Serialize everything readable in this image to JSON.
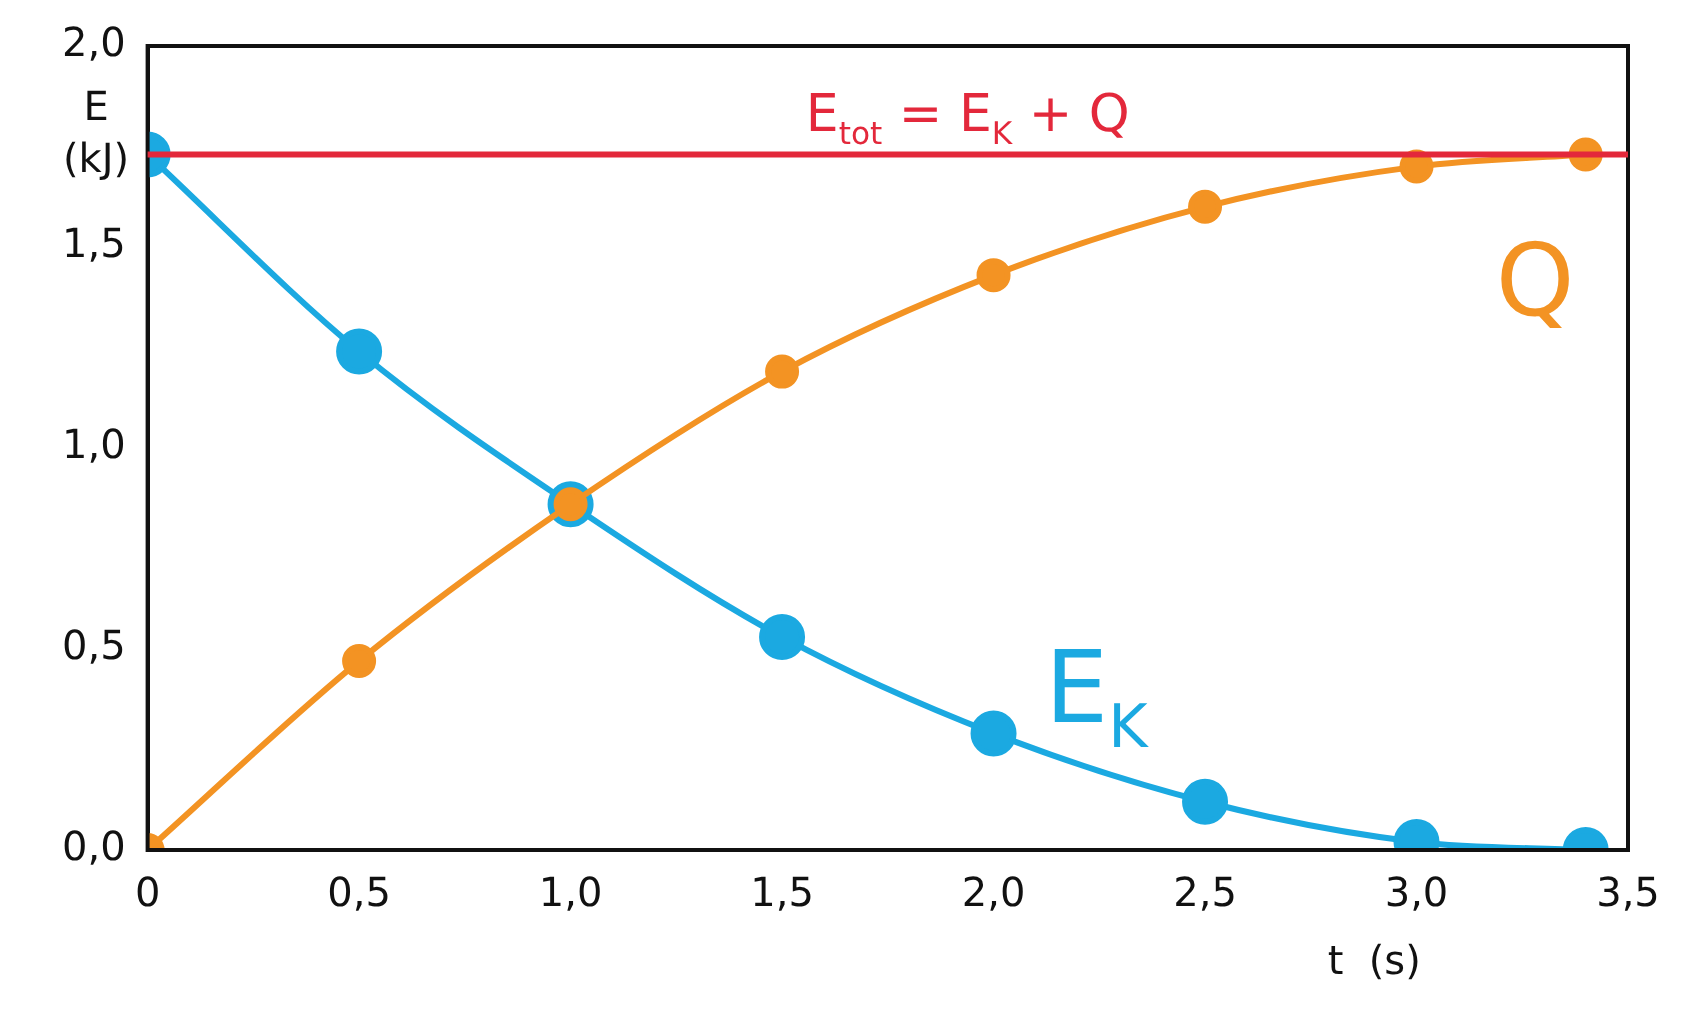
{
  "chart_data": {
    "type": "line",
    "xlabel": "t  (s)",
    "ylabel": "E\n(kJ)",
    "x": [
      0,
      0.5,
      1.0,
      1.5,
      2.0,
      2.5,
      3.0,
      3.4
    ],
    "series": [
      {
        "name": "E$_{K}$",
        "color": "#1ba9e1",
        "values": [
          1.73,
          1.24,
          0.86,
          0.53,
          0.29,
          0.12,
          0.02,
          0
        ]
      },
      {
        "name": "Q",
        "color": "#f39323",
        "values": [
          0,
          0.47,
          0.86,
          1.19,
          1.43,
          1.6,
          1.7,
          1.73
        ]
      }
    ],
    "ref_lines": [
      {
        "axis": "y",
        "value": 1.73,
        "label": "E$_{tot}$ = E$_{K}$ + Q",
        "color": "#e3283b"
      }
    ],
    "xlim": [
      0,
      3.5
    ],
    "xticks": [
      0,
      {
        "value": 0.5,
        "label": "0,5"
      },
      {
        "value": 1.0,
        "label": "1,0"
      },
      {
        "value": 1.5,
        "label": "1,5"
      },
      {
        "value": 2.0,
        "label": "2,0"
      },
      {
        "value": 2.5,
        "label": "2,5"
      },
      {
        "value": 3.0,
        "label": "3,0"
      },
      {
        "value": 3.5,
        "label": "3,5"
      }
    ],
    "ylim": [
      0,
      2.0
    ],
    "yticks": [
      {
        "value": 0,
        "label": "0,0"
      },
      {
        "value": 0.5,
        "label": "0,5"
      },
      {
        "value": 1.0,
        "label": "1,0"
      },
      {
        "value": 1.5,
        "label": "1,5"
      },
      {
        "value": 2.0,
        "label": "2,0"
      }
    ],
    "marker": "circle",
    "line_style": "solid",
    "grid": false,
    "legend": false
  }
}
